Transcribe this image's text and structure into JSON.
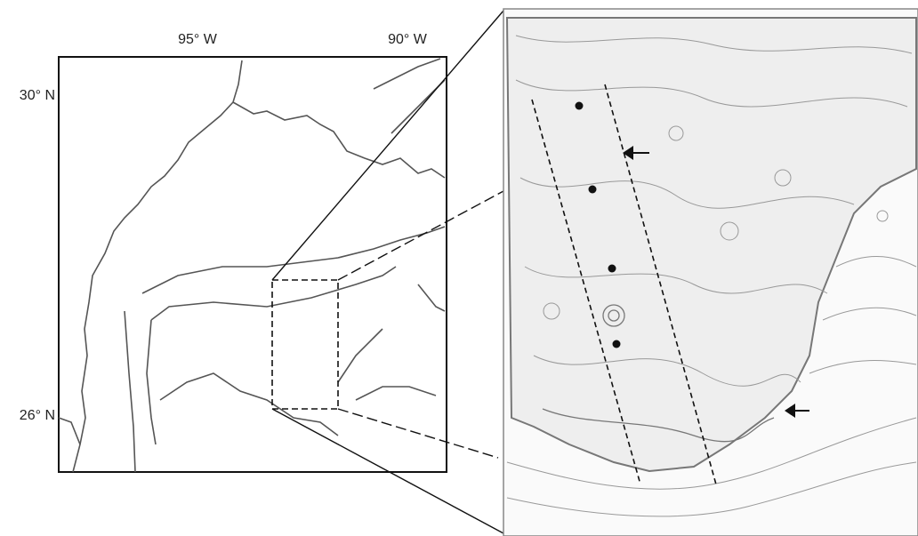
{
  "map": {
    "lon_labels": [
      "95° W",
      "90° W"
    ],
    "lat_labels": [
      "30° N",
      "26° N"
    ]
  }
}
